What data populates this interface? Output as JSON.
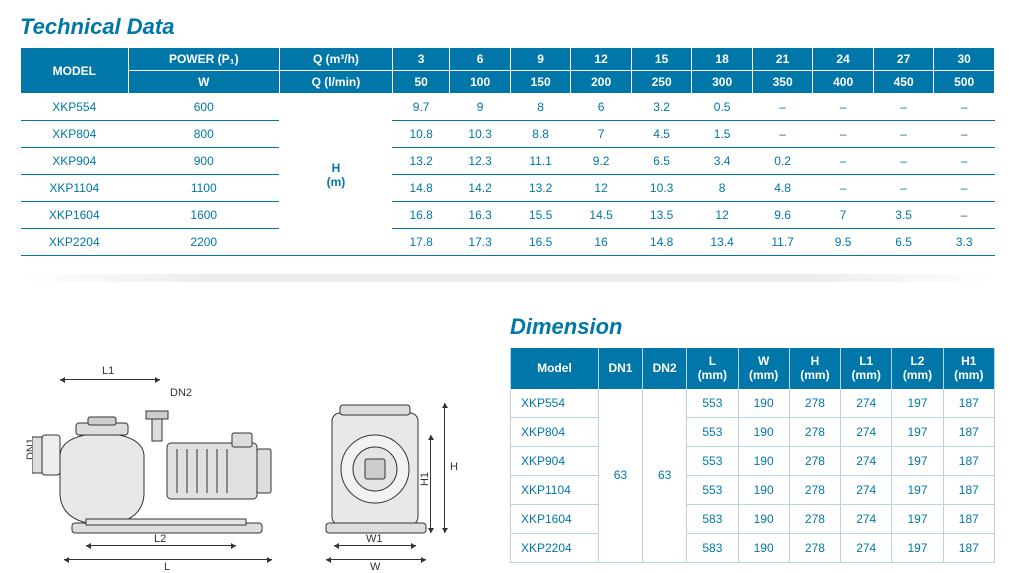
{
  "technical_data": {
    "title": "Technical Data",
    "header_row1": [
      "MODEL",
      "POWER (P₁)",
      "Q (m³/h)",
      "3",
      "6",
      "9",
      "12",
      "15",
      "18",
      "21",
      "24",
      "27",
      "30"
    ],
    "header_row2": [
      "W",
      "Q (l/min)",
      "50",
      "100",
      "150",
      "200",
      "250",
      "300",
      "350",
      "400",
      "450",
      "500"
    ],
    "h_unit": "H\n(m)",
    "rows": [
      {
        "model": "XKP554",
        "power": "600",
        "vals": [
          "9.7",
          "9",
          "8",
          "6",
          "3.2",
          "0.5",
          "–",
          "–",
          "–",
          "–"
        ]
      },
      {
        "model": "XKP804",
        "power": "800",
        "vals": [
          "10.8",
          "10.3",
          "8.8",
          "7",
          "4.5",
          "1.5",
          "–",
          "–",
          "–",
          "–"
        ]
      },
      {
        "model": "XKP904",
        "power": "900",
        "vals": [
          "13.2",
          "12.3",
          "11.1",
          "9.2",
          "6.5",
          "3.4",
          "0.2",
          "–",
          "–",
          "–"
        ]
      },
      {
        "model": "XKP1104",
        "power": "1100",
        "vals": [
          "14.8",
          "14.2",
          "13.2",
          "12",
          "10.3",
          "8",
          "4.8",
          "–",
          "–",
          "–"
        ]
      },
      {
        "model": "XKP1604",
        "power": "1600",
        "vals": [
          "16.8",
          "16.3",
          "15.5",
          "14.5",
          "13.5",
          "12",
          "9.6",
          "7",
          "3.5",
          "–"
        ]
      },
      {
        "model": "XKP2204",
        "power": "2200",
        "vals": [
          "17.8",
          "17.3",
          "16.5",
          "16",
          "14.8",
          "13.4",
          "11.7",
          "9.5",
          "6.5",
          "3.3"
        ]
      }
    ]
  },
  "dimension": {
    "title": "Dimension",
    "headers": [
      "Model",
      "DN1",
      "DN2",
      "L\n(mm)",
      "W\n(mm)",
      "H\n(mm)",
      "L1\n(mm)",
      "L2\n(mm)",
      "H1\n(mm)"
    ],
    "dn1": "63",
    "dn2": "63",
    "rows": [
      {
        "model": "XKP554",
        "vals": [
          "553",
          "190",
          "278",
          "274",
          "197",
          "187"
        ]
      },
      {
        "model": "XKP804",
        "vals": [
          "553",
          "190",
          "278",
          "274",
          "197",
          "187"
        ]
      },
      {
        "model": "XKP904",
        "vals": [
          "553",
          "190",
          "278",
          "274",
          "197",
          "187"
        ]
      },
      {
        "model": "XKP1104",
        "vals": [
          "553",
          "190",
          "278",
          "274",
          "197",
          "187"
        ]
      },
      {
        "model": "XKP1604",
        "vals": [
          "583",
          "190",
          "278",
          "274",
          "197",
          "187"
        ]
      },
      {
        "model": "XKP2204",
        "vals": [
          "583",
          "190",
          "278",
          "274",
          "197",
          "187"
        ]
      }
    ]
  },
  "diagram_labels": {
    "L1": "L1",
    "DN2": "DN2",
    "DN1": "DN1",
    "L2": "L2",
    "L": "L",
    "H": "H",
    "H1": "H1",
    "W1": "W1",
    "W": "W"
  }
}
